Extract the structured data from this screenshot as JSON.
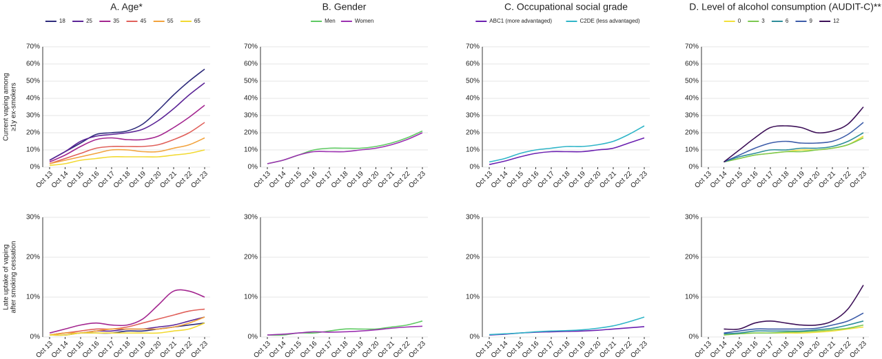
{
  "chart_data": [
    {
      "type": "line",
      "title": "A. Age*",
      "categories": [
        "Oct 13",
        "Oct 14",
        "Oct 15",
        "Oct 16",
        "Oct 17",
        "Oct 18",
        "Oct 19",
        "Oct 20",
        "Oct 21",
        "Oct 22",
        "Oct 23"
      ],
      "series": [
        {
          "name": "18",
          "color": "#2d2a7a"
        },
        {
          "name": "25",
          "color": "#5b2396"
        },
        {
          "name": "35",
          "color": "#a3258f"
        },
        {
          "name": "45",
          "color": "#e0605a"
        },
        {
          "name": "55",
          "color": "#f2a23c"
        },
        {
          "name": "65",
          "color": "#f2d930"
        }
      ],
      "panels": [
        {
          "ylabel": [
            "Current vaping among",
            "≥1y ex-smokers"
          ],
          "ylim": [
            0,
            70
          ],
          "yticks": [
            {
              "value": 0,
              "label": "0%"
            },
            {
              "value": 10,
              "label": "10%"
            },
            {
              "value": 20,
              "label": "20%"
            },
            {
              "value": 30,
              "label": "30%"
            },
            {
              "value": 40,
              "label": "40%"
            },
            {
              "value": 50,
              "label": "50%"
            },
            {
              "value": 60,
              "label": "60%"
            },
            {
              "value": 70,
              "label": "70%"
            }
          ],
          "values": [
            [
              4,
              9,
              14,
              19,
              20,
              21,
              25,
              33,
              42,
              50,
              57
            ],
            [
              4,
              9,
              15,
              18,
              19,
              20,
              22,
              27,
              34,
              42,
              49
            ],
            [
              3,
              7,
              12,
              16,
              17,
              16,
              16,
              18,
              23,
              29,
              36
            ],
            [
              2,
              5,
              8,
              11,
              12,
              12,
              12,
              13,
              16,
              20,
              26
            ],
            [
              2,
              4,
              6,
              8,
              10,
              10,
              9,
              9,
              11,
              13,
              17
            ],
            [
              1,
              2,
              4,
              5,
              6,
              6,
              6,
              6,
              7,
              8,
              10
            ]
          ]
        },
        {
          "ylabel": [
            "Late uptake of vaping",
            "after smoking cessation"
          ],
          "ylim": [
            0,
            30
          ],
          "yticks": [
            {
              "value": 0,
              "label": "0%"
            },
            {
              "value": 10,
              "label": "10%"
            },
            {
              "value": 20,
              "label": "20%"
            },
            {
              "value": 30,
              "label": "30%"
            }
          ],
          "values": [
            [
              0.5,
              0.5,
              1,
              1,
              1,
              1.5,
              1.5,
              2,
              2.5,
              3,
              3.5
            ],
            [
              0.5,
              1,
              1,
              1.5,
              1.5,
              2,
              2,
              2.5,
              3,
              4,
              5
            ],
            [
              1,
              2,
              3,
              3.5,
              3,
              3,
              4.5,
              8,
              11.5,
              11.5,
              10
            ],
            [
              0.5,
              1,
              1.5,
              2,
              2,
              2.5,
              3.5,
              4.5,
              5.5,
              6.5,
              7
            ],
            [
              0.5,
              1,
              1,
              1.5,
              2,
              2,
              2,
              2,
              2.5,
              3.5,
              5
            ],
            [
              0.5,
              0.5,
              1,
              1,
              1,
              1,
              1,
              1,
              1.5,
              2,
              3.5
            ]
          ]
        }
      ]
    },
    {
      "type": "line",
      "title": "B. Gender",
      "categories": [
        "Oct 13",
        "Oct 14",
        "Oct 15",
        "Oct 16",
        "Oct 17",
        "Oct 18",
        "Oct 19",
        "Oct 20",
        "Oct 21",
        "Oct 22",
        "Oct 23"
      ],
      "series": [
        {
          "name": "Men",
          "color": "#5ec962"
        },
        {
          "name": "Women",
          "color": "#9b30b0"
        }
      ],
      "panels": [
        {
          "ylim": [
            0,
            70
          ],
          "yticks": [
            {
              "value": 0,
              "label": "0%"
            },
            {
              "value": 10,
              "label": "10%"
            },
            {
              "value": 20,
              "label": "20%"
            },
            {
              "value": 30,
              "label": "30%"
            },
            {
              "value": 40,
              "label": "40%"
            },
            {
              "value": 50,
              "label": "50%"
            },
            {
              "value": 60,
              "label": "60%"
            },
            {
              "value": 70,
              "label": "70%"
            }
          ],
          "values": [
            [
              2,
              4,
              7,
              10,
              11,
              11,
              11,
              12,
              14,
              17,
              21
            ],
            [
              2,
              4,
              7,
              9,
              9,
              9,
              10,
              11,
              13,
              16,
              20
            ]
          ]
        },
        {
          "ylim": [
            0,
            30
          ],
          "yticks": [
            {
              "value": 0,
              "label": "0%"
            },
            {
              "value": 10,
              "label": "10%"
            },
            {
              "value": 20,
              "label": "20%"
            },
            {
              "value": 30,
              "label": "30%"
            }
          ],
          "values": [
            [
              0.5,
              0.5,
              1,
              1,
              1.5,
              2,
              2,
              2,
              2.5,
              3,
              4
            ],
            [
              0.5,
              0.7,
              1,
              1.3,
              1.2,
              1.3,
              1.5,
              1.8,
              2.2,
              2.5,
              2.7
            ]
          ]
        }
      ]
    },
    {
      "type": "line",
      "title": "C. Occupational social grade",
      "categories": [
        "Oct 13",
        "Oct 14",
        "Oct 15",
        "Oct 16",
        "Oct 17",
        "Oct 18",
        "Oct 19",
        "Oct 20",
        "Oct 21",
        "Oct 22",
        "Oct 23"
      ],
      "series": [
        {
          "name": "ABC1 (more advantaged)",
          "color": "#6a1fb0"
        },
        {
          "name": "C2DE (less advantaged)",
          "color": "#2fb5c8"
        }
      ],
      "panels": [
        {
          "ylim": [
            0,
            70
          ],
          "yticks": [
            {
              "value": 0,
              "label": "0%"
            },
            {
              "value": 10,
              "label": "10%"
            },
            {
              "value": 20,
              "label": "20%"
            },
            {
              "value": 30,
              "label": "30%"
            },
            {
              "value": 40,
              "label": "40%"
            },
            {
              "value": 50,
              "label": "50%"
            },
            {
              "value": 60,
              "label": "60%"
            },
            {
              "value": 70,
              "label": "70%"
            }
          ],
          "values": [
            [
              1.5,
              3.5,
              6,
              8,
              9,
              9,
              9,
              10,
              11,
              14,
              17
            ],
            [
              3,
              5,
              8,
              10,
              11,
              12,
              12,
              13,
              15,
              19,
              24
            ]
          ]
        },
        {
          "ylim": [
            0,
            30
          ],
          "yticks": [
            {
              "value": 0,
              "label": "0%"
            },
            {
              "value": 10,
              "label": "10%"
            },
            {
              "value": 20,
              "label": "20%"
            },
            {
              "value": 30,
              "label": "30%"
            }
          ],
          "values": [
            [
              0.5,
              0.7,
              1,
              1.2,
              1.3,
              1.4,
              1.5,
              1.7,
              2,
              2.3,
              2.6
            ],
            [
              0.6,
              0.8,
              1,
              1.3,
              1.5,
              1.6,
              1.8,
              2.2,
              2.8,
              3.8,
              5
            ]
          ]
        }
      ]
    },
    {
      "type": "line",
      "title": "D. Level of alcohol consumption (AUDIT-C)**",
      "categories": [
        "Oct 13",
        "Oct 14",
        "Oct 15",
        "Oct 16",
        "Oct 17",
        "Oct 18",
        "Oct 19",
        "Oct 20",
        "Oct 21",
        "Oct 22",
        "Oct 23"
      ],
      "series": [
        {
          "name": "0",
          "color": "#f2e03a"
        },
        {
          "name": "3",
          "color": "#7bc850"
        },
        {
          "name": "6",
          "color": "#2c8c99"
        },
        {
          "name": "9",
          "color": "#3b5ba8"
        },
        {
          "name": "12",
          "color": "#3c0f57"
        }
      ],
      "panels": [
        {
          "ylim": [
            0,
            70
          ],
          "yticks": [
            {
              "value": 0,
              "label": "0%"
            },
            {
              "value": 10,
              "label": "10%"
            },
            {
              "value": 20,
              "label": "20%"
            },
            {
              "value": 30,
              "label": "30%"
            },
            {
              "value": 40,
              "label": "40%"
            },
            {
              "value": 50,
              "label": "50%"
            },
            {
              "value": 60,
              "label": "60%"
            },
            {
              "value": 70,
              "label": "70%"
            }
          ],
          "values": [
            [
              null,
              3,
              5,
              7,
              8,
              9,
              10,
              10,
              11,
              13,
              18
            ],
            [
              null,
              3,
              5,
              7,
              8,
              9,
              9,
              10,
              11,
              13,
              17
            ],
            [
              null,
              3,
              6,
              8,
              10,
              10,
              11,
              11,
              12,
              15,
              20
            ],
            [
              null,
              3,
              7,
              11,
              14,
              15,
              14,
              14,
              15,
              19,
              26
            ],
            [
              null,
              3,
              10,
              17,
              23,
              24,
              23,
              20,
              21,
              25,
              35
            ]
          ]
        },
        {
          "ylim": [
            0,
            30
          ],
          "yticks": [
            {
              "value": 0,
              "label": "0%"
            },
            {
              "value": 10,
              "label": "10%"
            },
            {
              "value": 20,
              "label": "20%"
            },
            {
              "value": 30,
              "label": "30%"
            }
          ],
          "values": [
            [
              null,
              0.5,
              0.8,
              1,
              1,
              1,
              1,
              1.2,
              1.5,
              2,
              2.5
            ],
            [
              null,
              0.5,
              0.8,
              1,
              1,
              1.2,
              1.3,
              1.5,
              1.8,
              2.2,
              3
            ],
            [
              null,
              0.8,
              1,
              1.5,
              1.5,
              1.5,
              1.5,
              1.8,
              2.2,
              3,
              4
            ],
            [
              null,
              1,
              1.5,
              2,
              2,
              2,
              2,
              2.2,
              3,
              4,
              6
            ],
            [
              null,
              2,
              2,
              3.5,
              4,
              3.5,
              3,
              3,
              4,
              7,
              13
            ]
          ]
        }
      ]
    }
  ]
}
